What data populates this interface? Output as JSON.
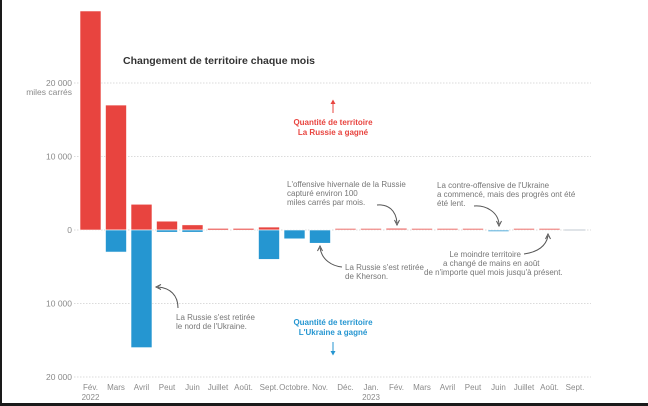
{
  "chart_data": {
    "type": "bar",
    "title": "Changement de territoire chaque mois",
    "ylabel": "miles carrés",
    "xlabel": "",
    "ylim": [
      -20000,
      30000
    ],
    "yticks": [
      {
        "value": 20000,
        "label": "20 000",
        "sublabel": "miles carrés"
      },
      {
        "value": 10000,
        "label": "10 000"
      },
      {
        "value": 0,
        "label": "0"
      },
      {
        "value": -10000,
        "label": "10 000"
      },
      {
        "value": -20000,
        "label": "20 000"
      }
    ],
    "grid": true,
    "categories": [
      {
        "label": "Fév.",
        "year": "2022"
      },
      {
        "label": "Mars"
      },
      {
        "label": "Avril"
      },
      {
        "label": "Peut"
      },
      {
        "label": "Juin"
      },
      {
        "label": "Juillet"
      },
      {
        "label": "Août."
      },
      {
        "label": "Sept."
      },
      {
        "label": "Octobre."
      },
      {
        "label": "Nov."
      },
      {
        "label": "Déc."
      },
      {
        "label": "Jan.",
        "year": "2023"
      },
      {
        "label": "Fév."
      },
      {
        "label": "Mars"
      },
      {
        "label": "Avril"
      },
      {
        "label": "Peut"
      },
      {
        "label": "Juin"
      },
      {
        "label": "Juillet"
      },
      {
        "label": "Août."
      },
      {
        "label": "Sept."
      }
    ],
    "series": [
      {
        "name": "Quantité de territoire La Russie a gagné",
        "color": "#e8443f",
        "values": [
          29800,
          17000,
          3500,
          1200,
          700,
          200,
          200,
          400,
          0,
          0,
          50,
          150,
          250,
          150,
          200,
          80,
          0,
          60,
          20,
          0
        ]
      },
      {
        "name": "Quantité de territoire L'Ukraine a gagné",
        "color": "#2596d1",
        "values": [
          0,
          -3000,
          -16000,
          -300,
          -300,
          0,
          0,
          -4000,
          -1200,
          -1800,
          0,
          0,
          0,
          0,
          0,
          0,
          -150,
          0,
          0,
          0
        ]
      }
    ],
    "legend": {
      "russia": {
        "line1": "Quantité de territoire",
        "line2": "La Russie a gagné",
        "position": "upper-center"
      },
      "ukraine": {
        "line1": "Quantité de territoire",
        "line2": "L'Ukraine a gagné",
        "position": "lower-center"
      }
    },
    "annotations": [
      {
        "id": "kyiv",
        "lines": [
          "La Russie s'est retirée",
          "le nord de l'Ukraine."
        ],
        "target": "Avril"
      },
      {
        "id": "kherson",
        "lines": [
          "La Russie s'est retirée",
          "de Kherson."
        ],
        "target": "Nov."
      },
      {
        "id": "winter",
        "lines": [
          "L'offensive hivernale de la Russie",
          "capturé environ 100",
          "miles carrés par mois."
        ],
        "target": "Fév. 2023"
      },
      {
        "id": "counter",
        "lines": [
          "La contre-offensive de l'Ukraine",
          "a commencé, mais des progrès ont été",
          "été lent."
        ],
        "target": "Juin 2023"
      },
      {
        "id": "least",
        "lines": [
          "Le moindre territoire",
          "a changé de mains en août",
          "de n'importe quel mois jusqu'à présent."
        ],
        "target": "Août. 2023"
      }
    ]
  }
}
